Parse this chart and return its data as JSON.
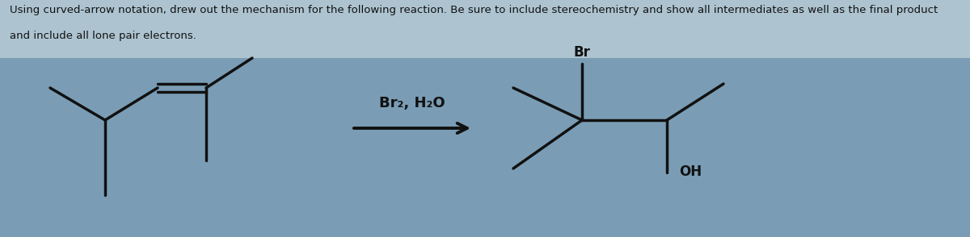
{
  "bg_color": "#7a9db5",
  "title_bg": "#adc4d0",
  "title_text1": "Using curved-arrow notation, drew out the mechanism for the following reaction. Be sure to include stereochemistry and show all intermediates as well as the final product",
  "title_text2": "and include all lone pair electrons.",
  "title_fontsize": 9.5,
  "title_color": "#111111",
  "reagent_text": "Br₂, H₂O",
  "reagent_fontsize": 13,
  "arrow_color": "#111111",
  "molecule_color": "#111111",
  "line_width": 2.5,
  "br_label": "Br",
  "oh_label": "OH",
  "label_fontsize": 12
}
